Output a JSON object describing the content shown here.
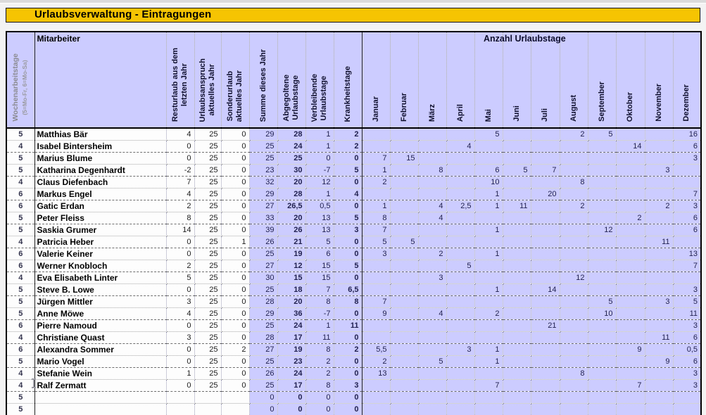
{
  "title": "Urlaubsverwaltung - Eintragungen",
  "colors": {
    "title_bar_bg": "#F6C402",
    "header_bg": "#CCCCFF",
    "grid_bg": "#FFFFFF"
  },
  "table": {
    "group_header": "Anzahl Urlaubstage",
    "columns": [
      {
        "id": "wochenarbeitstage",
        "label": "Wochenarbeitstage",
        "sublabel": "(5=Mo-Fr, 6=Mo-Sa)"
      },
      {
        "id": "mitarbeiter",
        "label": "Mitarbeiter"
      },
      {
        "id": "resturlaub",
        "label": "Resturlaub aus dem\nletzten Jahr"
      },
      {
        "id": "urlaubsanspruch",
        "label": "Urlaubsanspruch\naktuelles Jahr"
      },
      {
        "id": "sonderurlaub",
        "label": "Sonderurlaub\naktuelles Jahr"
      },
      {
        "id": "summe",
        "label": "Summe dieses Jahr"
      },
      {
        "id": "abgegoltene",
        "label": "Abgegoltene\nUrlaubstage"
      },
      {
        "id": "verbleibende",
        "label": "Verbleibende\nUrlaubstage"
      },
      {
        "id": "krankheitstage",
        "label": "Krankheitstage"
      },
      {
        "id": "januar",
        "label": "Januar"
      },
      {
        "id": "februar",
        "label": "Februar"
      },
      {
        "id": "maerz",
        "label": "März"
      },
      {
        "id": "april",
        "label": "April"
      },
      {
        "id": "mai",
        "label": "Mai"
      },
      {
        "id": "juni",
        "label": "Juni"
      },
      {
        "id": "juli",
        "label": "Juli"
      },
      {
        "id": "august",
        "label": "August"
      },
      {
        "id": "september",
        "label": "September"
      },
      {
        "id": "oktober",
        "label": "Oktober"
      },
      {
        "id": "november",
        "label": "November"
      },
      {
        "id": "dezember",
        "label": "Dezember"
      }
    ],
    "rows": [
      {
        "cells": [
          "5",
          "Matthias Bär",
          "4",
          "25",
          "0",
          "29",
          "28",
          "1",
          "2",
          "",
          "",
          "",
          "",
          "5",
          "",
          "",
          "2",
          "5",
          "",
          "",
          "16"
        ]
      },
      {
        "cells": [
          "4",
          "Isabel Bintersheim",
          "0",
          "25",
          "0",
          "25",
          "24",
          "1",
          "2",
          "",
          "",
          "",
          "4",
          "",
          "",
          "",
          "",
          "",
          "14",
          "",
          "6"
        ]
      },
      {
        "cells": [
          "5",
          "Marius Blume",
          "0",
          "25",
          "0",
          "25",
          "25",
          "0",
          "0",
          "7",
          "15",
          "",
          "",
          "",
          "",
          "",
          "",
          "",
          "",
          "",
          "3"
        ]
      },
      {
        "cells": [
          "5",
          "Katharina Degenhardt",
          "-2",
          "25",
          "0",
          "23",
          "30",
          "-7",
          "5",
          "1",
          "",
          "8",
          "",
          "6",
          "5",
          "7",
          "",
          "",
          "",
          "3",
          ""
        ]
      },
      {
        "cells": [
          "4",
          "Claus Diefenbach",
          "7",
          "25",
          "0",
          "32",
          "20",
          "12",
          "0",
          "2",
          "",
          "",
          "",
          "10",
          "",
          "",
          "8",
          "",
          "",
          "",
          ""
        ]
      },
      {
        "cells": [
          "6",
          "Markus Engel",
          "4",
          "25",
          "0",
          "29",
          "28",
          "1",
          "4",
          "",
          "",
          "",
          "",
          "1",
          "",
          "20",
          "",
          "",
          "",
          "",
          "7"
        ]
      },
      {
        "cells": [
          "6",
          "Gatic Erdan",
          "2",
          "25",
          "0",
          "27",
          "26,5",
          "0,5",
          "0",
          "1",
          "",
          "4",
          "2,5",
          "1",
          "11",
          "",
          "2",
          "",
          "",
          "2",
          "3"
        ]
      },
      {
        "cells": [
          "5",
          "Peter Fleiss",
          "8",
          "25",
          "0",
          "33",
          "20",
          "13",
          "5",
          "8",
          "",
          "4",
          "",
          "",
          "",
          "",
          "",
          "",
          "2",
          "",
          "6"
        ]
      },
      {
        "cells": [
          "5",
          "Saskia Grumer",
          "14",
          "25",
          "0",
          "39",
          "26",
          "13",
          "3",
          "7",
          "",
          "",
          "",
          "1",
          "",
          "",
          "",
          "12",
          "",
          "",
          "6"
        ]
      },
      {
        "cells": [
          "4",
          "Patricia Heber",
          "0",
          "25",
          "1",
          "26",
          "21",
          "5",
          "0",
          "5",
          "5",
          "",
          "",
          "",
          "",
          "",
          "",
          "",
          "",
          "11",
          ""
        ]
      },
      {
        "cells": [
          "6",
          "Valerie Keiner",
          "0",
          "25",
          "0",
          "25",
          "19",
          "6",
          "0",
          "3",
          "",
          "2",
          "",
          "1",
          "",
          "",
          "",
          "",
          "",
          "",
          "13"
        ]
      },
      {
        "cells": [
          "6",
          "Werner Knobloch",
          "2",
          "25",
          "0",
          "27",
          "12",
          "15",
          "5",
          "",
          "",
          "",
          "5",
          "",
          "",
          "",
          "",
          "",
          "",
          "",
          "7"
        ]
      },
      {
        "cells": [
          "4",
          "Eva Elisabeth Linter",
          "5",
          "25",
          "0",
          "30",
          "15",
          "15",
          "0",
          "",
          "",
          "3",
          "",
          "",
          "",
          "",
          "12",
          "",
          "",
          "",
          ""
        ]
      },
      {
        "cells": [
          "5",
          "Steve B. Lowe",
          "0",
          "25",
          "0",
          "25",
          "18",
          "7",
          "6,5",
          "",
          "",
          "",
          "",
          "1",
          "",
          "14",
          "",
          "",
          "",
          "",
          "3"
        ]
      },
      {
        "cells": [
          "5",
          "Jürgen Mittler",
          "3",
          "25",
          "0",
          "28",
          "20",
          "8",
          "8",
          "7",
          "",
          "",
          "",
          "",
          "",
          "",
          "",
          "5",
          "",
          "3",
          "5"
        ]
      },
      {
        "cells": [
          "5",
          "Anne Möwe",
          "4",
          "25",
          "0",
          "29",
          "36",
          "-7",
          "0",
          "9",
          "",
          "4",
          "",
          "2",
          "",
          "",
          "",
          "10",
          "",
          "",
          "11"
        ]
      },
      {
        "cells": [
          "6",
          "Pierre Namoud",
          "0",
          "25",
          "0",
          "25",
          "24",
          "1",
          "11",
          "",
          "",
          "",
          "",
          "",
          "",
          "21",
          "",
          "",
          "",
          "",
          "3"
        ]
      },
      {
        "cells": [
          "4",
          "Christiane Quast",
          "3",
          "25",
          "0",
          "28",
          "17",
          "11",
          "0",
          "",
          "",
          "",
          "",
          "",
          "",
          "",
          "",
          "",
          "",
          "11",
          "6"
        ]
      },
      {
        "cells": [
          "6",
          "Alexandra Sommer",
          "0",
          "25",
          "2",
          "27",
          "19",
          "8",
          "2",
          "5,5",
          "",
          "",
          "3",
          "1",
          "",
          "",
          "",
          "",
          "9",
          "",
          "0,5"
        ]
      },
      {
        "cells": [
          "5",
          "Mario Vogel",
          "0",
          "25",
          "0",
          "25",
          "23",
          "2",
          "0",
          "2",
          "",
          "5",
          "",
          "1",
          "",
          "",
          "",
          "",
          "",
          "9",
          "6"
        ]
      },
      {
        "cells": [
          "4",
          "Stefanie Wein",
          "1",
          "25",
          "0",
          "26",
          "24",
          "2",
          "0",
          "13",
          "",
          "",
          "",
          "",
          "",
          "",
          "8",
          "",
          "",
          "",
          "3"
        ]
      },
      {
        "cells": [
          "4",
          "Ralf Zermatt",
          "0",
          "25",
          "0",
          "25",
          "17",
          "8",
          "3",
          "",
          "",
          "",
          "",
          "7",
          "",
          "",
          "",
          "",
          "7",
          "",
          "3"
        ]
      },
      {
        "cells": [
          "5",
          "",
          "",
          "",
          "",
          "0",
          "0",
          "0",
          "0",
          "",
          "",
          "",
          "",
          "",
          "",
          "",
          "",
          "",
          "",
          "",
          ""
        ]
      },
      {
        "cells": [
          "5",
          "",
          "",
          "",
          "",
          "0",
          "0",
          "0",
          "0",
          "",
          "",
          "",
          "",
          "",
          "",
          "",
          "",
          "",
          "",
          "",
          ""
        ]
      }
    ]
  }
}
